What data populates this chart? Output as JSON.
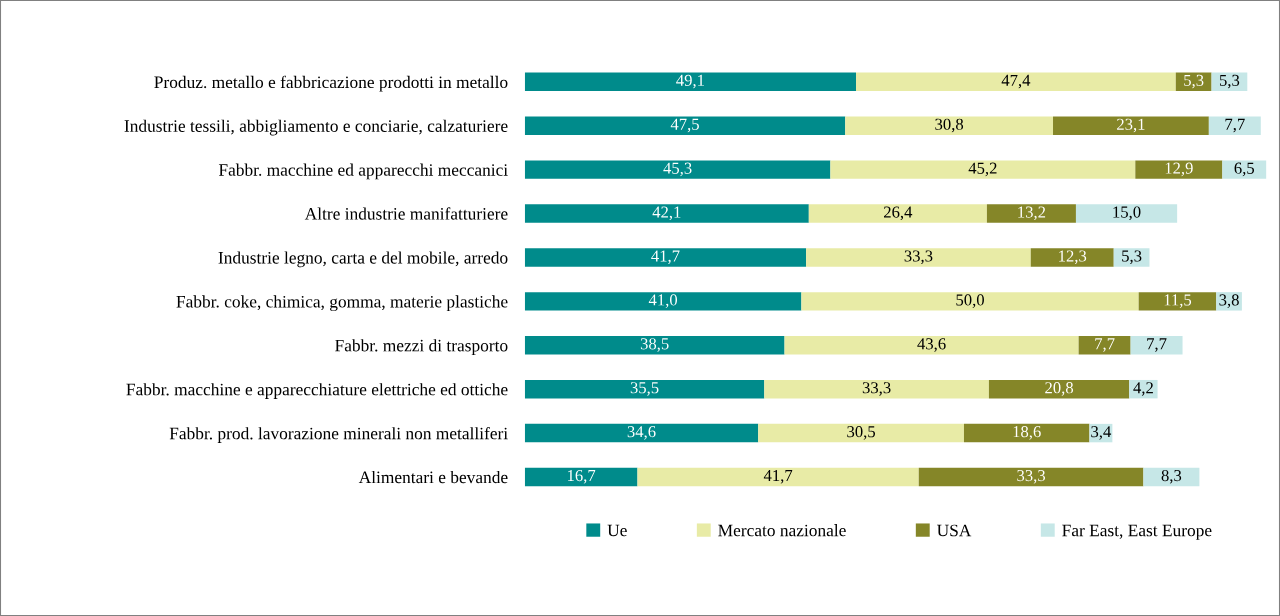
{
  "chart_data": {
    "type": "bar",
    "orientation": "horizontal",
    "stacked": true,
    "categories": [
      "Produz. metallo e fabbricazione prodotti in metallo",
      "Industrie tessili, abbigliamento e conciarie, calzaturiere",
      "Fabbr. macchine ed apparecchi meccanici",
      "Altre industrie manifatturiere",
      "Industrie legno, carta e del mobile, arredo",
      "Fabbr. coke, chimica, gomma, materie plastiche",
      "Fabbr. mezzi di trasporto",
      "Fabbr. macchine e apparecchiature elettriche ed ottiche",
      "Fabbr. prod. lavorazione minerali non metalliferi",
      "Alimentari e bevande"
    ],
    "series": [
      {
        "name": "Ue",
        "color": "#008b8b",
        "values": [
          49.1,
          47.5,
          45.3,
          42.1,
          41.7,
          41.0,
          38.5,
          35.5,
          34.6,
          16.7
        ],
        "value_labels": [
          "49,1",
          "47,5",
          "45,3",
          "42,1",
          "41,7",
          "41,0",
          "38,5",
          "35,5",
          "34,6",
          "16,7"
        ]
      },
      {
        "name": "Mercato nazionale",
        "color": "#e8eba6",
        "values": [
          47.4,
          30.8,
          45.2,
          26.4,
          33.3,
          50.0,
          43.6,
          33.3,
          30.5,
          41.7
        ],
        "value_labels": [
          "47,4",
          "30,8",
          "45,2",
          "26,4",
          "33,3",
          "50,0",
          "43,6",
          "33,3",
          "30,5",
          "41,7"
        ]
      },
      {
        "name": "USA",
        "color": "#858628",
        "values": [
          5.3,
          23.1,
          12.9,
          13.2,
          12.3,
          11.5,
          7.7,
          20.8,
          18.6,
          33.3
        ],
        "value_labels": [
          "5,3",
          "23,1",
          "12,9",
          "13,2",
          "12,3",
          "11,5",
          "7,7",
          "20,8",
          "18,6",
          "33,3"
        ]
      },
      {
        "name": "Far East, East Europe",
        "color": "#c6e7e7",
        "values": [
          5.3,
          7.7,
          6.5,
          15.0,
          5.3,
          3.8,
          7.7,
          4.2,
          3.4,
          8.3
        ],
        "value_labels": [
          "5,3",
          "7,7",
          "6,5",
          "15,0",
          "5,3",
          "3,8",
          "7,7",
          "4,2",
          "3,4",
          "8,3"
        ]
      }
    ],
    "legend": "bottom",
    "grid": false
  }
}
